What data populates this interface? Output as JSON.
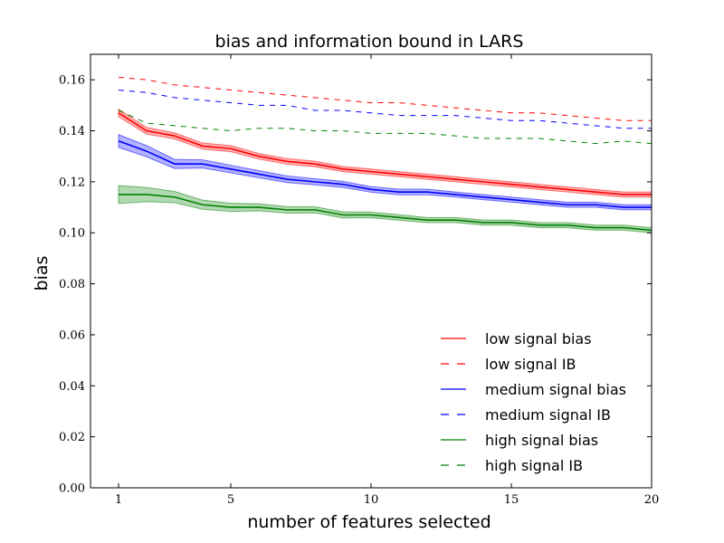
{
  "chart_data": {
    "type": "line",
    "title": "bias and information bound in LARS",
    "xlabel": "number of features selected",
    "ylabel": "bias",
    "xlim": [
      0,
      20
    ],
    "ylim": [
      0.0,
      0.17
    ],
    "xticks": [
      1,
      5,
      10,
      15,
      20
    ],
    "xtick_labels": [
      "1",
      "5",
      "10",
      "15",
      "20"
    ],
    "yticks": [
      0.0,
      0.02,
      0.04,
      0.06,
      0.08,
      0.1,
      0.12,
      0.14,
      0.16
    ],
    "ytick_labels": [
      "0.00",
      "0.02",
      "0.04",
      "0.06",
      "0.08",
      "0.10",
      "0.12",
      "0.14",
      "0.16"
    ],
    "legend_position": "lower-right",
    "x": [
      1,
      2,
      3,
      4,
      5,
      6,
      7,
      8,
      9,
      10,
      11,
      12,
      13,
      14,
      15,
      16,
      17,
      18,
      19,
      20
    ],
    "series": [
      {
        "name": "low signal bias",
        "color": "#ff0000",
        "style": "solid",
        "band": true,
        "values": [
          0.147,
          0.14,
          0.138,
          0.134,
          0.133,
          0.13,
          0.128,
          0.127,
          0.125,
          0.124,
          0.123,
          0.122,
          0.121,
          0.12,
          0.119,
          0.118,
          0.117,
          0.116,
          0.115,
          0.115
        ],
        "band_halfwidth": [
          0.0015,
          0.0013,
          0.0012,
          0.0012,
          0.0012,
          0.0011,
          0.0011,
          0.0011,
          0.001,
          0.001,
          0.001,
          0.001,
          0.001,
          0.001,
          0.001,
          0.001,
          0.001,
          0.001,
          0.001,
          0.001
        ]
      },
      {
        "name": "low signal IB",
        "color": "#ff0000",
        "style": "dashed",
        "band": false,
        "values": [
          0.161,
          0.16,
          0.158,
          0.157,
          0.156,
          0.155,
          0.154,
          0.153,
          0.152,
          0.151,
          0.151,
          0.15,
          0.149,
          0.148,
          0.147,
          0.147,
          0.146,
          0.145,
          0.144,
          0.144
        ]
      },
      {
        "name": "medium signal bias",
        "color": "#0000ff",
        "style": "solid",
        "band": true,
        "values": [
          0.136,
          0.132,
          0.127,
          0.127,
          0.125,
          0.123,
          0.121,
          0.12,
          0.119,
          0.117,
          0.116,
          0.116,
          0.115,
          0.114,
          0.113,
          0.112,
          0.111,
          0.111,
          0.11,
          0.11
        ],
        "band_halfwidth": [
          0.0025,
          0.0022,
          0.0018,
          0.0016,
          0.0015,
          0.0014,
          0.0013,
          0.0012,
          0.0012,
          0.0011,
          0.0011,
          0.0011,
          0.001,
          0.001,
          0.001,
          0.001,
          0.001,
          0.001,
          0.001,
          0.001
        ]
      },
      {
        "name": "medium signal IB",
        "color": "#0000ff",
        "style": "dashed",
        "band": false,
        "values": [
          0.156,
          0.155,
          0.153,
          0.152,
          0.151,
          0.15,
          0.15,
          0.148,
          0.148,
          0.147,
          0.146,
          0.146,
          0.146,
          0.145,
          0.144,
          0.144,
          0.143,
          0.142,
          0.141,
          0.141
        ]
      },
      {
        "name": "high signal bias",
        "color": "#008000",
        "style": "solid",
        "band": true,
        "values": [
          0.115,
          0.115,
          0.114,
          0.111,
          0.11,
          0.11,
          0.109,
          0.109,
          0.107,
          0.107,
          0.106,
          0.105,
          0.105,
          0.104,
          0.104,
          0.103,
          0.103,
          0.102,
          0.102,
          0.101
        ],
        "band_halfwidth": [
          0.0035,
          0.0028,
          0.0022,
          0.0018,
          0.0016,
          0.0014,
          0.0013,
          0.0012,
          0.0012,
          0.0011,
          0.0011,
          0.001,
          0.001,
          0.001,
          0.001,
          0.001,
          0.001,
          0.001,
          0.001,
          0.001
        ]
      },
      {
        "name": "high signal IB",
        "color": "#008000",
        "style": "dashed",
        "band": false,
        "values": [
          0.148,
          0.143,
          0.142,
          0.141,
          0.14,
          0.141,
          0.141,
          0.14,
          0.14,
          0.139,
          0.139,
          0.139,
          0.138,
          0.137,
          0.137,
          0.137,
          0.136,
          0.135,
          0.136,
          0.135
        ]
      }
    ]
  }
}
